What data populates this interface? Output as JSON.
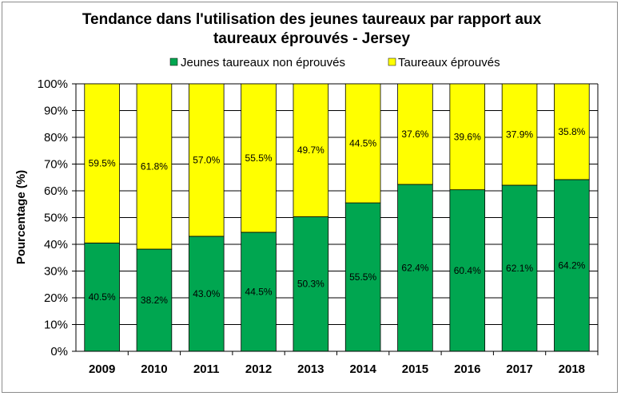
{
  "chart_data": {
    "type": "bar",
    "stacked": true,
    "title_lines": [
      "Tendance dans l'utilisation des jeunes taureaux par rapport aux",
      "taureaux éprouvés - Jersey"
    ],
    "ylabel": "Pourcentage (%)",
    "xlabel": "",
    "ylim": [
      0,
      100
    ],
    "y_ticks": [
      "0%",
      "10%",
      "20%",
      "30%",
      "40%",
      "50%",
      "60%",
      "70%",
      "80%",
      "90%",
      "100%"
    ],
    "grid": true,
    "legend_position": "top",
    "categories": [
      "2009",
      "2010",
      "2011",
      "2012",
      "2013",
      "2014",
      "2015",
      "2016",
      "2017",
      "2018"
    ],
    "series": [
      {
        "name": "Jeunes taureaux non éprouvés",
        "color": "#00a650",
        "values": [
          40.5,
          38.2,
          43.0,
          44.5,
          50.3,
          55.5,
          62.4,
          60.4,
          62.1,
          64.2
        ],
        "labels": [
          "40.5%",
          "38.2%",
          "43.0%",
          "44.5%",
          "50.3%",
          "55.5%",
          "62.4%",
          "60.4%",
          "62.1%",
          "64.2%"
        ]
      },
      {
        "name": "Taureaux éprouvés",
        "color": "#ffff00",
        "values": [
          59.5,
          61.8,
          57.0,
          55.5,
          49.7,
          44.5,
          37.6,
          39.6,
          37.9,
          35.8
        ],
        "labels": [
          "59.5%",
          "61.8%",
          "57.0%",
          "55.5%",
          "49.7%",
          "44.5%",
          "37.6%",
          "39.6%",
          "37.9%",
          "35.8%"
        ]
      }
    ]
  }
}
